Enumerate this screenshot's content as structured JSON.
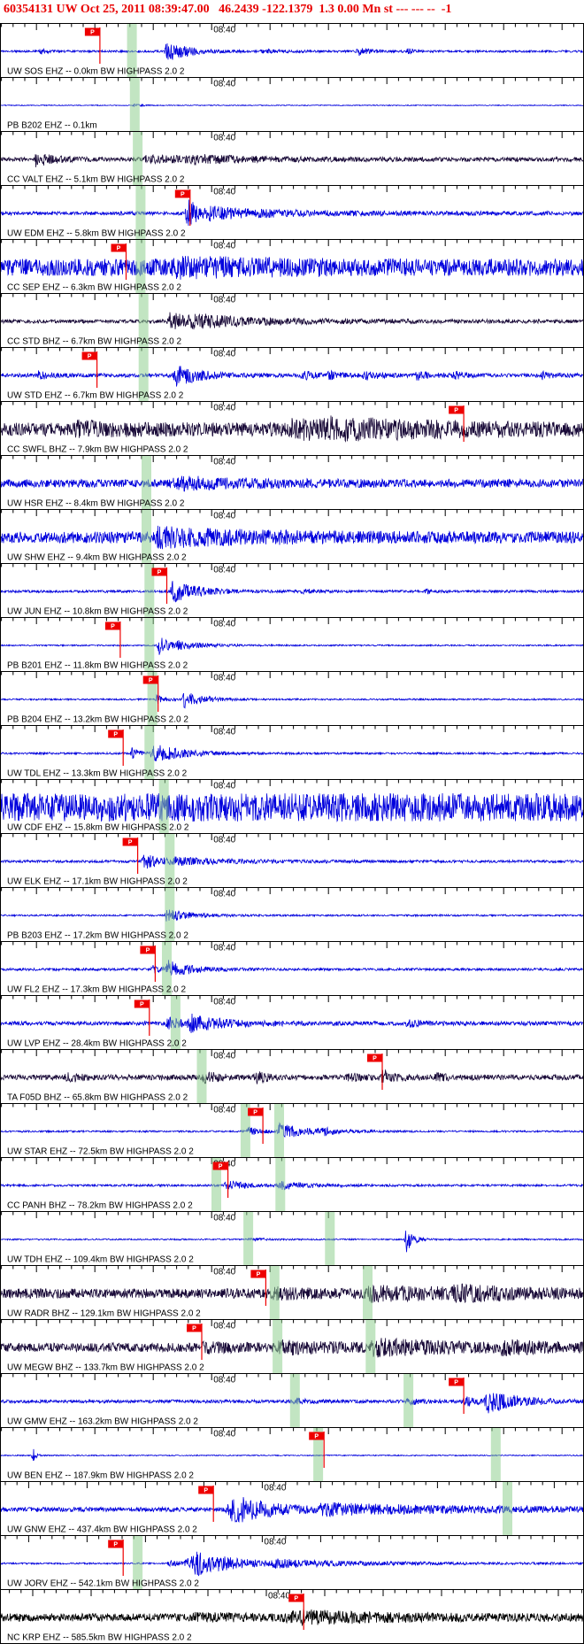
{
  "header": {
    "text": "60354131 UW Oct 25, 2011 08:39:47.00   46.2439 -122.1379  1.3 0.00 Mn st --- --- --  -1"
  },
  "time_label": "08:40",
  "pick_label": "P",
  "colors": {
    "header_text": "#e80000",
    "trace_blue": "#0000dd",
    "trace_navy": "#190a38",
    "trace_black": "#000000",
    "pick_red": "#ee0000",
    "band_green": "#8fd08f",
    "axis_black": "#000000",
    "background": "#ffffff"
  },
  "stations": [
    {
      "label": "UW SOS EHZ -- 0.0km BW HIGHPASS 2.0 2",
      "color": "blue",
      "noise": 1.2,
      "bursts": [
        {
          "c": 0.07,
          "a": 3,
          "d": 8
        },
        {
          "c": 0.285,
          "a": 13,
          "d": 22,
          "r": 3
        },
        {
          "c": 0.45,
          "a": 1.5,
          "d": 30
        },
        {
          "c": 0.615,
          "a": 4,
          "d": 14
        },
        {
          "c": 0.7,
          "a": 2.5,
          "d": 10
        }
      ],
      "picks": [
        0.17
      ],
      "bands": [
        0.225
      ]
    },
    {
      "label": "PB B202 EHZ -- 0.1km",
      "color": "blue",
      "noise": 0.5,
      "bursts": [
        {
          "c": 0.23,
          "a": 1.2,
          "d": 10
        }
      ],
      "picks": [],
      "bands": [
        0.23
      ]
    },
    {
      "label": "CC VALT EHZ -- 5.1km BW HIGHPASS 2.0 2",
      "color": "navy",
      "noise": 2.2,
      "bursts": [
        {
          "c": 0.06,
          "a": 7,
          "d": 25
        },
        {
          "c": 0.25,
          "a": 3,
          "d": 150
        },
        {
          "c": 0.33,
          "a": 3,
          "d": 40
        }
      ],
      "picks": [],
      "bands": [
        0.235
      ]
    },
    {
      "label": "UW EDM EHZ -- 5.8km BW HIGHPASS 2.0 2",
      "color": "blue",
      "noise": 2,
      "bursts": [
        {
          "c": 0.32,
          "a": 17,
          "d": 15,
          "r": 3
        },
        {
          "c": 0.36,
          "a": 5,
          "d": 120
        }
      ],
      "picks": [
        0.325
      ],
      "bands": [
        0.24
      ]
    },
    {
      "label": "CC SEP EHZ -- 6.3km BW HIGHPASS 2.0 2",
      "color": "blue",
      "noise": 9.5,
      "bursts": [
        {
          "c": 0.3,
          "a": 5,
          "d": 120
        }
      ],
      "picks": [
        0.215
      ],
      "bands": [
        0.24
      ]
    },
    {
      "label": "CC STD BHZ -- 6.7km BW HIGHPASS 2.0 2",
      "color": "navy",
      "noise": 2,
      "bursts": [
        {
          "c": 0.29,
          "a": 9,
          "d": 50,
          "r": 4
        },
        {
          "c": 0.33,
          "a": 3,
          "d": 150
        }
      ],
      "picks": [],
      "bands": [
        0.245
      ]
    },
    {
      "label": "UW STD EHZ -- 6.7km BW HIGHPASS 2.0 2",
      "color": "blue",
      "noise": 2.2,
      "bursts": [
        {
          "c": 0.065,
          "a": 4,
          "d": 12
        },
        {
          "c": 0.3,
          "a": 13,
          "d": 25,
          "r": 3
        },
        {
          "c": 0.52,
          "a": 4,
          "d": 15
        },
        {
          "c": 0.565,
          "a": 3,
          "d": 12
        },
        {
          "c": 0.625,
          "a": 5,
          "d": 14
        },
        {
          "c": 0.715,
          "a": 4,
          "d": 14
        },
        {
          "c": 0.78,
          "a": 3,
          "d": 12
        },
        {
          "c": 0.93,
          "a": 3,
          "d": 12
        }
      ],
      "picks": [
        0.165
      ],
      "bands": [
        0.245
      ]
    },
    {
      "label": "CC SWFL BHZ -- 7.9km BW HIGHPASS 2.0 2",
      "color": "navy",
      "noise": 7.5,
      "bursts": [
        {
          "c": 0.13,
          "a": 4,
          "d": 60
        },
        {
          "c": 0.5,
          "a": 6,
          "d": 200
        },
        {
          "c": 0.56,
          "a": 4,
          "d": 80
        }
      ],
      "picks": [
        0.795
      ],
      "bands": []
    },
    {
      "label": "UW HSR EHZ -- 8.4km BW HIGHPASS 2.0 2",
      "color": "blue",
      "noise": 4.5,
      "bursts": [
        {
          "c": 0.3,
          "a": 5,
          "d": 90
        }
      ],
      "picks": [],
      "bands": [
        0.25
      ]
    },
    {
      "label": "UW SHW EHZ -- 9.4km BW HIGHPASS 2.0 2",
      "color": "blue",
      "noise": 6.5,
      "bursts": [
        {
          "c": 0.27,
          "a": 7,
          "d": 110
        }
      ],
      "picks": [],
      "bands": [
        0.25
      ]
    },
    {
      "label": "UW JUN EHZ -- 10.8km BW HIGHPASS 2.0 2",
      "color": "blue",
      "noise": 1.4,
      "bursts": [
        {
          "c": 0.295,
          "a": 12,
          "d": 30,
          "r": 3
        },
        {
          "c": 0.52,
          "a": 2.5,
          "d": 12
        },
        {
          "c": 0.73,
          "a": 2,
          "d": 10
        }
      ],
      "picks": [
        0.285
      ],
      "bands": [
        0.255
      ]
    },
    {
      "label": "PB B201 EHZ -- 11.8km BW HIGHPASS 2.0 2",
      "color": "blue",
      "noise": 0.8,
      "bursts": [
        {
          "c": 0.27,
          "a": 11,
          "d": 14,
          "r": 2
        },
        {
          "c": 0.305,
          "a": 4,
          "d": 35
        }
      ],
      "picks": [
        0.205
      ],
      "bands": [
        0.255
      ]
    },
    {
      "label": "PB B204 EHZ -- 13.2km BW HIGHPASS 2.0 2",
      "color": "blue",
      "noise": 0.9,
      "bursts": [
        {
          "c": 0.268,
          "a": 5,
          "d": 10,
          "r": 2
        },
        {
          "c": 0.315,
          "a": 9,
          "d": 22,
          "r": 3
        }
      ],
      "picks": [
        0.27
      ],
      "bands": [
        0.26
      ]
    },
    {
      "label": "UW TDL EHZ -- 13.3km BW HIGHPASS 2.0 2",
      "color": "blue",
      "noise": 1.1,
      "bursts": [
        {
          "c": 0.225,
          "a": 6,
          "d": 8,
          "r": 2
        },
        {
          "c": 0.262,
          "a": 10,
          "d": 35,
          "r": 4
        }
      ],
      "picks": [
        0.21
      ],
      "bands": [
        0.255
      ]
    },
    {
      "label": "UW CDF EHZ -- 15.8km BW HIGHPASS 2.0 2",
      "color": "blue",
      "noise": 16,
      "bursts": [],
      "picks": [],
      "bands": [
        0.28
      ]
    },
    {
      "label": "UW ELK EHZ -- 17.1km BW HIGHPASS 2.0 2",
      "color": "blue",
      "noise": 1.4,
      "bursts": [
        {
          "c": 0.245,
          "a": 8,
          "d": 25,
          "r": 3
        },
        {
          "c": 0.3,
          "a": 3,
          "d": 90
        }
      ],
      "picks": [
        0.235
      ],
      "bands": [
        0.29
      ]
    },
    {
      "label": "PB B203 EHZ -- 17.2km BW HIGHPASS 2.0 2",
      "color": "blue",
      "noise": 1,
      "bursts": [
        {
          "c": 0.285,
          "a": 7,
          "d": 28,
          "r": 3
        }
      ],
      "picks": [],
      "bands": [
        0.29
      ]
    },
    {
      "label": "UW FL2 EHZ -- 17.3km BW HIGHPASS 2.0 2",
      "color": "blue",
      "noise": 1.4,
      "bursts": [
        {
          "c": 0.262,
          "a": 4,
          "d": 10
        },
        {
          "c": 0.287,
          "a": 9,
          "d": 28,
          "r": 3
        }
      ],
      "picks": [
        0.265
      ],
      "bands": [
        0.285
      ]
    },
    {
      "label": "UW LVP EHZ -- 28.4km BW HIGHPASS 2.0 2",
      "color": "blue",
      "noise": 2.2,
      "bursts": [
        {
          "c": 0.287,
          "a": 6,
          "d": 18
        },
        {
          "c": 0.325,
          "a": 8,
          "d": 45
        },
        {
          "c": 0.7,
          "a": 3,
          "d": 20
        }
      ],
      "picks": [
        0.255
      ],
      "bands": [
        0.3
      ]
    },
    {
      "label": "TA F05D BHZ -- 65.8km BW HIGHPASS 2.0 2",
      "color": "navy",
      "noise": 3,
      "bursts": [
        {
          "c": 0.115,
          "a": 5,
          "d": 12
        },
        {
          "c": 0.35,
          "a": 6,
          "d": 15
        },
        {
          "c": 0.44,
          "a": 5,
          "d": 12
        },
        {
          "c": 0.6,
          "a": 4,
          "d": 10
        },
        {
          "c": 0.655,
          "a": 7,
          "d": 14
        },
        {
          "c": 0.75,
          "a": 3,
          "d": 10
        }
      ],
      "picks": [
        0.655
      ],
      "bands": [
        0.345
      ]
    },
    {
      "label": "UW STAR EHZ -- 72.5km BW HIGHPASS 2.0 2",
      "color": "blue",
      "noise": 1,
      "bursts": [
        {
          "c": 0.425,
          "a": 5,
          "d": 14
        },
        {
          "c": 0.478,
          "a": 9,
          "d": 30,
          "r": 3
        },
        {
          "c": 0.55,
          "a": 3,
          "d": 25
        }
      ],
      "picks": [
        0.45
      ],
      "bands": [
        0.42,
        0.478
      ]
    },
    {
      "label": "CC PANH BHZ -- 78.2km BW HIGHPASS 2.0 2",
      "color": "blue",
      "noise": 1.2,
      "bursts": [
        {
          "c": 0.387,
          "a": 7,
          "d": 18
        },
        {
          "c": 0.48,
          "a": 4,
          "d": 40
        }
      ],
      "picks": [
        0.39
      ],
      "bands": [
        0.37,
        0.48
      ]
    },
    {
      "label": "UW TDH EHZ -- 109.4km BW HIGHPASS 2.0 2",
      "color": "blue",
      "noise": 0.8,
      "bursts": [
        {
          "c": 0.697,
          "a": 15,
          "d": 7,
          "r": 3
        },
        {
          "c": 0.43,
          "a": 1.5,
          "d": 20
        }
      ],
      "picks": [],
      "bands": [
        0.425,
        0.565
      ]
    },
    {
      "label": "UW RADR BHZ -- 129.1km BW HIGHPASS 2.0 2",
      "color": "navy",
      "noise": 5.5,
      "bursts": [
        {
          "c": 0.47,
          "a": 3,
          "d": 60
        },
        {
          "c": 0.63,
          "a": 5,
          "d": 120
        },
        {
          "c": 0.78,
          "a": 4,
          "d": 60
        }
      ],
      "picks": [
        0.455
      ],
      "bands": [
        0.47,
        0.63
      ]
    },
    {
      "label": "UW MEGW BHZ -- 133.7km BW HIGHPASS 2.0 2",
      "color": "navy",
      "noise": 5,
      "bursts": [
        {
          "c": 0.35,
          "a": 3,
          "d": 40
        },
        {
          "c": 0.48,
          "a": 5,
          "d": 60
        },
        {
          "c": 0.64,
          "a": 6,
          "d": 100
        },
        {
          "c": 0.86,
          "a": 4,
          "d": 50
        }
      ],
      "picks": [
        0.345
      ],
      "bands": [
        0.475,
        0.635
      ]
    },
    {
      "label": "UW GMW EHZ -- 163.2km BW HIGHPASS 2.0 2",
      "color": "blue",
      "noise": 1.8,
      "bursts": [
        {
          "c": 0.505,
          "a": 2.5,
          "d": 20
        },
        {
          "c": 0.7,
          "a": 3,
          "d": 20
        },
        {
          "c": 0.795,
          "a": 5,
          "d": 20
        },
        {
          "c": 0.838,
          "a": 12,
          "d": 35,
          "r": 6
        }
      ],
      "picks": [
        0.795
      ],
      "bands": [
        0.505,
        0.7
      ]
    },
    {
      "label": "UW BEN EHZ -- 187.9km BW HIGHPASS 2.0 2",
      "color": "blue",
      "noise": 0.6,
      "bursts": [
        {
          "c": 0.055,
          "a": 11,
          "d": 3,
          "r": 2
        }
      ],
      "picks": [
        0.555
      ],
      "bands": [
        0.545,
        0.85
      ]
    },
    {
      "label": "UW GNW EHZ -- 437.4km BW HIGHPASS 2.0 2",
      "color": "blue",
      "noise": 2.5,
      "bursts": [
        {
          "c": 0.4,
          "a": 15,
          "d": 45,
          "r": 10
        },
        {
          "c": 0.55,
          "a": 5,
          "d": 200
        }
      ],
      "picks": [
        0.365
      ],
      "bands": [
        0.87
      ],
      "tlx": 0.449
    },
    {
      "label": "UW JORV EHZ -- 542.1km BW HIGHPASS 2.0 2",
      "color": "blue",
      "noise": 0.9,
      "bursts": [
        {
          "c": 0.29,
          "a": 3,
          "d": 25
        },
        {
          "c": 0.335,
          "a": 13,
          "d": 50,
          "r": 14
        },
        {
          "c": 0.47,
          "a": 3,
          "d": 150
        }
      ],
      "picks": [
        0.21
      ],
      "bands": [
        0.235
      ],
      "tlx": 0.449
    },
    {
      "label": "NC KRP EHZ -- 585.5km BW HIGHPASS 2.0 2",
      "color": "black",
      "noise": 4.5,
      "bursts": [
        {
          "c": 0.52,
          "a": 5,
          "d": 90,
          "r": 30
        },
        {
          "c": 0.33,
          "a": 2,
          "d": 60
        }
      ],
      "picks": [
        0.52
      ],
      "bands": [],
      "tlx": 0.456
    }
  ]
}
